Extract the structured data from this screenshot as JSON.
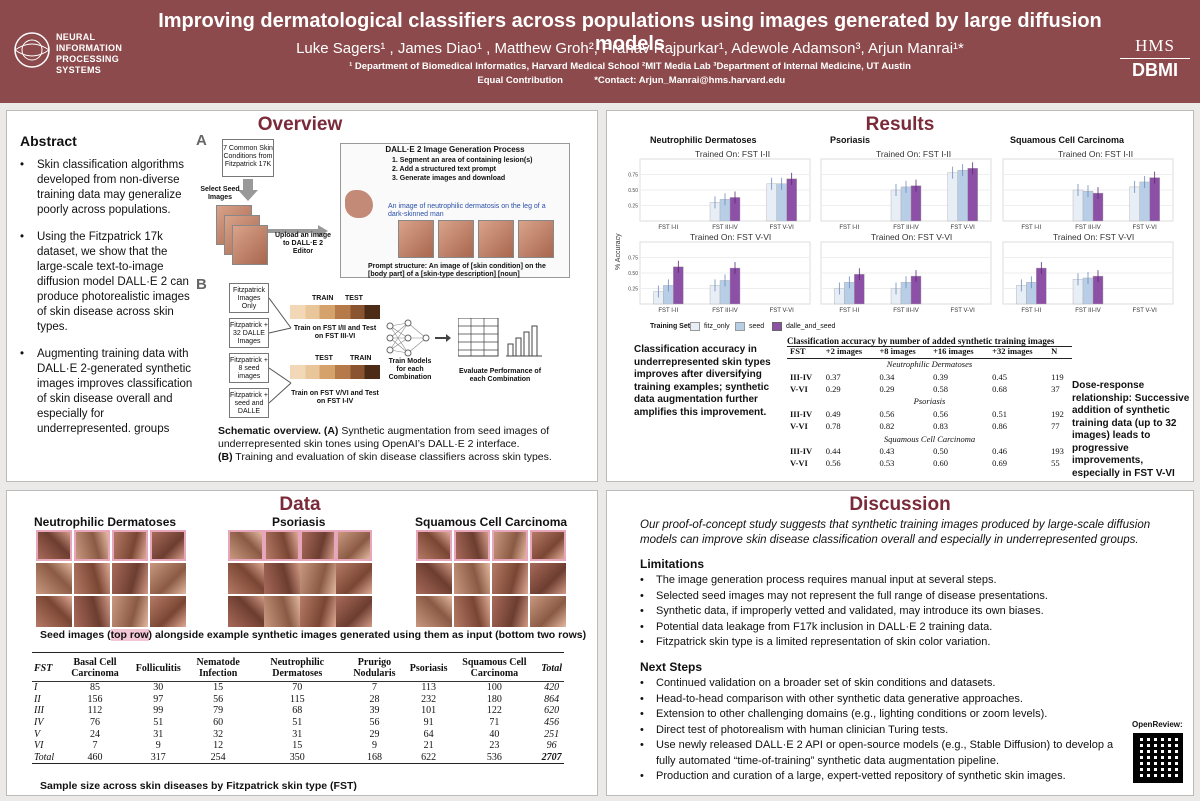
{
  "header": {
    "title": "Improving dermatological classifiers across populations using images generated by large diffusion models",
    "authors": "Luke Sagers¹ , James Diao¹ , Matthew Groh², Pranav Rajpurkar¹, Adewole Adamson³, Arjun Manrai¹*",
    "affiliations": "¹ Department of Biomedical Informatics, Harvard Medical School ²MIT Media Lab ³Department of Internal Medicine, UT Austin",
    "contribution": " Equal Contribution",
    "contact": "*Contact: Arjun_Manrai@hms.harvard.edu",
    "logo_left": "NEURAL INFORMATION PROCESSING SYSTEMS",
    "logo_right_top": "HMS",
    "logo_right_bottom": "DBMI"
  },
  "abstract": {
    "title": "Abstract",
    "items": [
      "Skin classification algorithms developed from non-diverse training data may generalize poorly across populations.",
      "Using the Fitzpatrick 17k dataset, we show that the large-scale text-to-image diffusion model DALL·E 2 can produce photorealistic images of skin disease across skin types.",
      "Augmenting training data with DALL·E 2-generated synthetic images improves classification of skin disease overall and especially for underrepresented. groups"
    ]
  },
  "overview": {
    "title": "Overview",
    "label_a": "A",
    "label_b": "B",
    "seed_box": "7 Common Skin Conditions from Fitzpatrick 17K",
    "select_seed": "Select Seed Images",
    "upload": "Upload an image to DALL·E 2 Editor",
    "process_title": "DALL·E 2 Image Generation Process",
    "steps": [
      "1. Segment an area of containing lesion(s)",
      "2. Add a structured text prompt",
      "3. Generate images and download"
    ],
    "prompt_example": "An image of neutrophilic dermatosis on the leg of a dark-skinned man",
    "prompt_structure": "Prompt structure: An image of [skin condition] on the [body part] of a [skin-type description] [noun]",
    "sets": [
      "Fitzpatrick Images Only",
      "Fitzpatrick + 32 DALLE Images",
      "Fitzpatrick + 8 seed images",
      "Fitzpatrick + seed and DALLE"
    ],
    "train": "TRAIN",
    "test": "TEST",
    "split1": "Train on FST I/II and Test on FST III-VI",
    "split2": "Train on FST V/VI and Test on FST I-IV",
    "train_models": "Train Models for each Combination",
    "evaluate": "Evaluate Performance of each Combination",
    "caption_bold": "Schematic overview. (A)",
    "caption_a": " Synthetic augmentation from seed images of underrepresented skin tones using OpenAI’s DALL·E 2 interface.",
    "caption_b_bold": "(B)",
    "caption_b": " Training and evaluation of skin disease classifiers across skin types."
  },
  "results": {
    "title": "Results",
    "ylabel": "% Accuracy",
    "diseases": [
      "Neutrophilic Dermatoses",
      "Psoriasis",
      "Squamous Cell Carcinoma"
    ],
    "trained_top": "Trained On: FST I-II",
    "trained_bottom": "Trained On: FST V-VI",
    "x_labels": [
      "FST I-II",
      "FST III-IV",
      "FST V-VI"
    ],
    "legend_title": "Training Set",
    "legend": [
      "fitz_only",
      "seed",
      "dalle_and_seed"
    ],
    "left_text": "Classification accuracy in underrepresented skin types improves after diversifying training examples; synthetic data augmentation further amplifies this improvement.",
    "right_text": "Dose-response relationship: Successive addition of synthetic training data (up to 32 images) leads to progressive improvements, especially in FST V-VI",
    "table_caption": "Classification accuracy by number of added synthetic training images",
    "table_headers": [
      "FST",
      "+2 images",
      "+8 images",
      "+16 images",
      "+32 images",
      "N"
    ],
    "table_groups": [
      {
        "name": "Neutrophilic Dermatoses",
        "rows": [
          [
            "III-IV",
            "0.37",
            "0.34",
            "0.39",
            "0.45",
            "119"
          ],
          [
            "V-VI",
            "0.29",
            "0.29",
            "0.58",
            "0.68",
            "37"
          ]
        ]
      },
      {
        "name": "Psoriasis",
        "rows": [
          [
            "III-IV",
            "0.49",
            "0.56",
            "0.56",
            "0.51",
            "192"
          ],
          [
            "V-VI",
            "0.78",
            "0.82",
            "0.83",
            "0.86",
            "77"
          ]
        ]
      },
      {
        "name": "Squamous Cell Carcinoma",
        "rows": [
          [
            "III-IV",
            "0.44",
            "0.43",
            "0.50",
            "0.46",
            "193"
          ],
          [
            "V-VI",
            "0.56",
            "0.53",
            "0.60",
            "0.69",
            "55"
          ]
        ]
      }
    ]
  },
  "chart_data": {
    "type": "bar",
    "ylabel": "% Accuracy",
    "categories": [
      "FST I-II",
      "FST III-IV",
      "FST V-VI"
    ],
    "ylim": [
      0,
      1
    ],
    "panels": [
      {
        "disease": "Neutrophilic Dermatoses",
        "trained_on": "FST I-II",
        "series": [
          {
            "name": "fitz_only",
            "values": [
              null,
              0.3,
              0.6
            ]
          },
          {
            "name": "seed",
            "values": [
              null,
              0.35,
              0.6
            ]
          },
          {
            "name": "dalle_and_seed",
            "values": [
              null,
              0.38,
              0.68
            ]
          }
        ]
      },
      {
        "disease": "Psoriasis",
        "trained_on": "FST I-II",
        "series": [
          {
            "name": "fitz_only",
            "values": [
              null,
              0.5,
              0.78
            ]
          },
          {
            "name": "seed",
            "values": [
              null,
              0.55,
              0.82
            ]
          },
          {
            "name": "dalle_and_seed",
            "values": [
              null,
              0.57,
              0.85
            ]
          }
        ]
      },
      {
        "disease": "Squamous Cell Carcinoma",
        "trained_on": "FST I-II",
        "series": [
          {
            "name": "fitz_only",
            "values": [
              null,
              0.5,
              0.55
            ]
          },
          {
            "name": "seed",
            "values": [
              null,
              0.48,
              0.63
            ]
          },
          {
            "name": "dalle_and_seed",
            "values": [
              null,
              0.45,
              0.7
            ]
          }
        ]
      },
      {
        "disease": "Neutrophilic Dermatoses",
        "trained_on": "FST V-VI",
        "series": [
          {
            "name": "fitz_only",
            "values": [
              0.2,
              0.3,
              null
            ]
          },
          {
            "name": "seed",
            "values": [
              0.3,
              0.38,
              null
            ]
          },
          {
            "name": "dalle_and_seed",
            "values": [
              0.6,
              0.58,
              null
            ]
          }
        ]
      },
      {
        "disease": "Psoriasis",
        "trained_on": "FST V-VI",
        "series": [
          {
            "name": "fitz_only",
            "values": [
              0.25,
              0.25,
              null
            ]
          },
          {
            "name": "seed",
            "values": [
              0.35,
              0.35,
              null
            ]
          },
          {
            "name": "dalle_and_seed",
            "values": [
              0.48,
              0.45,
              null
            ]
          }
        ]
      },
      {
        "disease": "Squamous Cell Carcinoma",
        "trained_on": "FST V-VI",
        "series": [
          {
            "name": "fitz_only",
            "values": [
              0.3,
              0.4,
              null
            ]
          },
          {
            "name": "seed",
            "values": [
              0.35,
              0.42,
              null
            ]
          },
          {
            "name": "dalle_and_seed",
            "values": [
              0.58,
              0.45,
              null
            ]
          }
        ]
      }
    ]
  },
  "data": {
    "title": "Data",
    "diseases": [
      "Neutrophilic Dermatoses",
      "Psoriasis",
      "Squamous Cell Carcinoma"
    ],
    "seed_caption_pre": "Seed images (",
    "seed_caption_hl": "top row",
    "seed_caption_post": ") alongside example synthetic images generated using them as input (bottom two rows)",
    "table_headers": [
      "FST",
      "Basal Cell Carcinoma",
      "Folliculitis",
      "Nematode Infection",
      "Neutrophilic Dermatoses",
      "Prurigo Nodularis",
      "Psoriasis",
      "Squamous Cell Carcinoma",
      "Total"
    ],
    "table_rows": [
      [
        "I",
        "85",
        "30",
        "15",
        "70",
        "7",
        "113",
        "100",
        "420"
      ],
      [
        "II",
        "156",
        "97",
        "56",
        "115",
        "28",
        "232",
        "180",
        "864"
      ],
      [
        "III",
        "112",
        "99",
        "79",
        "68",
        "39",
        "101",
        "122",
        "620"
      ],
      [
        "IV",
        "76",
        "51",
        "60",
        "51",
        "56",
        "91",
        "71",
        "456"
      ],
      [
        "V",
        "24",
        "31",
        "32",
        "31",
        "29",
        "64",
        "40",
        "251"
      ],
      [
        "VI",
        "7",
        "9",
        "12",
        "15",
        "9",
        "21",
        "23",
        "96"
      ],
      [
        "Total",
        "460",
        "317",
        "254",
        "350",
        "168",
        "622",
        "536",
        "2707"
      ]
    ],
    "table_caption": "Sample size across skin diseases by Fitzpatrick skin type (FST)"
  },
  "discussion": {
    "title": "Discussion",
    "intro": "Our proof-of-concept study suggests that synthetic training images produced by large-scale diffusion models can improve skin disease classification overall and especially in underrepresented groups.",
    "limitations_title": "Limitations",
    "limitations": [
      "The image generation process requires manual input at several steps.",
      "Selected seed images may not represent the full range of disease presentations.",
      "Synthetic data, if improperly vetted and validated, may introduce its own biases.",
      "Potential data leakage from F17k inclusion in DALL·E 2 training data.",
      "Fitzpatrick skin type is a limited representation of skin color variation."
    ],
    "next_title": "Next Steps",
    "next": [
      "Continued validation on a broader set of skin conditions and datasets.",
      "Head-to-head comparison with other synthetic data generative approaches.",
      "Extension to other challenging domains (e.g., lighting conditions or zoom levels).",
      "Direct test of photorealism with human clinician Turing tests.",
      "Use newly released DALL·E 2 API or open-source models (e.g., Stable Diffusion) to develop a fully automated “time-of-training” synthetic data augmentation pipeline.",
      "Production and curation of a large, expert-vetted repository of synthetic skin images."
    ],
    "openreview": "OpenReview:"
  },
  "colors": {
    "header": "#8c4a4c",
    "section_title": "#7a2a38",
    "fitz_only": "#e8eef6",
    "seed": "#b8cde6",
    "dalle_and_seed": "#8c50a6"
  }
}
